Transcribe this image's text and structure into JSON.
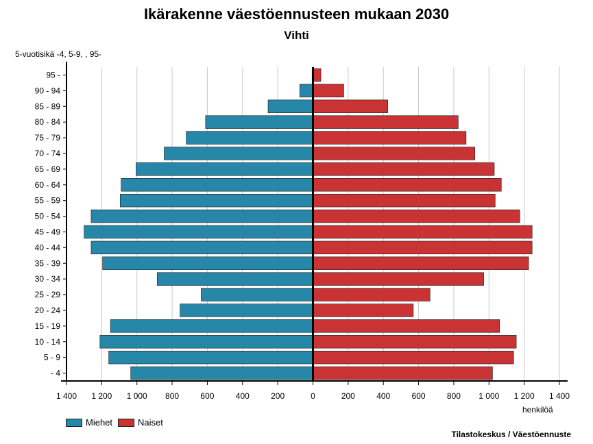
{
  "chart_data": {
    "type": "bar",
    "title": "Ikärakenne väestöennusteen mukaan 2030",
    "subtitle": "Vihti",
    "ylabel": "5-vuotisikä -4, 5-9, , 95-",
    "xlabel": "henkilöä",
    "xlim": [
      -1400,
      1400
    ],
    "xticks": [
      -1400,
      -1200,
      -1000,
      -800,
      -600,
      -400,
      -200,
      0,
      200,
      400,
      600,
      800,
      1000,
      1200,
      1400
    ],
    "xtick_labels": [
      "1 400",
      "1 200",
      "1 000",
      "800",
      "600",
      "400",
      "200",
      "0",
      "200",
      "400",
      "600",
      "800",
      "1 000",
      "1 200",
      "1 400"
    ],
    "grid": true,
    "legend_position": "bottom-left",
    "categories": [
      "95 -",
      "90 - 94",
      "85 - 89",
      "80 - 84",
      "75 - 79",
      "70 - 74",
      "65 - 69",
      "60 - 64",
      "55 - 59",
      "50 - 54",
      "45 - 49",
      "40 - 44",
      "35 - 39",
      "30 - 34",
      "25 - 29",
      "20 - 24",
      "15 - 19",
      "10 - 14",
      "5 - 9",
      "- 4"
    ],
    "series": [
      {
        "name": "Miehet",
        "color": "#2787a8",
        "values": [
          5,
          75,
          255,
          610,
          720,
          845,
          1005,
          1090,
          1095,
          1260,
          1300,
          1260,
          1195,
          885,
          635,
          755,
          1150,
          1210,
          1160,
          1035
        ]
      },
      {
        "name": "Naiset",
        "color": "#c93333",
        "values": [
          45,
          175,
          425,
          825,
          870,
          920,
          1030,
          1070,
          1035,
          1175,
          1245,
          1245,
          1225,
          970,
          665,
          570,
          1060,
          1155,
          1140,
          1020
        ]
      }
    ]
  },
  "source": "Tilastokeskus / Väestöennuste"
}
